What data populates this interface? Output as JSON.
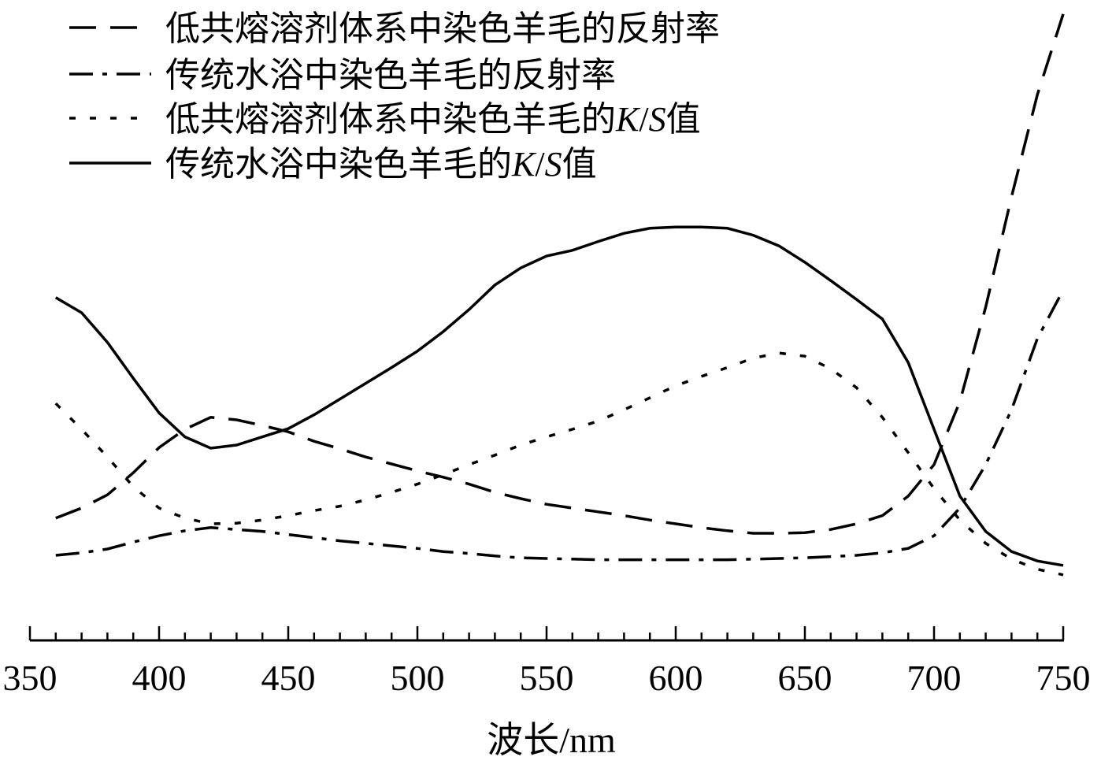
{
  "chart_data": {
    "type": "line",
    "title": "",
    "xlabel": "波长/nm",
    "ylabel": "",
    "xlim": [
      350,
      750
    ],
    "ylim": [
      0,
      100
    ],
    "y_axis_shown": false,
    "grid": false,
    "legend_position": "top-left",
    "xticks": [
      350,
      400,
      450,
      500,
      550,
      600,
      650,
      700,
      750
    ],
    "x": [
      360,
      370,
      380,
      390,
      400,
      410,
      420,
      430,
      440,
      450,
      460,
      470,
      480,
      490,
      500,
      510,
      520,
      530,
      540,
      550,
      560,
      570,
      580,
      590,
      600,
      610,
      620,
      630,
      640,
      650,
      660,
      670,
      680,
      690,
      700,
      710,
      720,
      730,
      740,
      750
    ],
    "series": [
      {
        "name": "低共熔溶剂体系中染色羊毛的反射率",
        "style": "dashed",
        "values": [
          19.4,
          21.0,
          23.1,
          26.6,
          30.6,
          33.5,
          35.4,
          35.0,
          34.1,
          33.1,
          31.6,
          30.4,
          29.1,
          28.0,
          26.9,
          25.9,
          24.8,
          23.5,
          22.5,
          21.6,
          21.0,
          20.4,
          19.8,
          19.1,
          18.5,
          17.9,
          17.4,
          17.0,
          17.0,
          17.1,
          17.6,
          18.5,
          19.8,
          22.9,
          27.9,
          37.9,
          52.9,
          70.4,
          86.6,
          99.4
        ]
      },
      {
        "name": "传统水浴中染色羊毛的反射率",
        "style": "dashdot",
        "values": [
          13.5,
          13.9,
          14.5,
          15.6,
          16.6,
          17.4,
          17.9,
          17.6,
          17.3,
          16.8,
          16.3,
          15.8,
          15.4,
          15.0,
          14.6,
          14.1,
          13.8,
          13.4,
          13.1,
          13.0,
          12.9,
          12.8,
          12.8,
          12.8,
          12.8,
          12.8,
          12.8,
          12.9,
          13.0,
          13.1,
          13.3,
          13.5,
          13.9,
          14.6,
          16.6,
          21.0,
          27.9,
          36.6,
          47.9,
          55.6
        ]
      },
      {
        "name": "低共熔溶剂体系中染色羊毛的K/S值",
        "style": "dotted",
        "values": [
          37.6,
          33.5,
          29.1,
          24.4,
          21.0,
          19.4,
          18.5,
          18.6,
          19.1,
          19.8,
          20.6,
          21.3,
          22.3,
          23.5,
          24.8,
          26.3,
          27.9,
          29.4,
          31.0,
          32.3,
          33.5,
          34.8,
          36.6,
          38.5,
          40.4,
          41.9,
          43.3,
          44.8,
          45.6,
          45.1,
          43.1,
          40.1,
          35.4,
          29.8,
          24.1,
          19.1,
          15.4,
          12.9,
          11.3,
          10.4
        ]
      },
      {
        "name": "传统水浴中染色羊毛的K/S值",
        "style": "solid",
        "values": [
          54.4,
          52.0,
          47.3,
          41.6,
          36.1,
          32.3,
          30.5,
          31.0,
          32.3,
          33.6,
          35.8,
          38.3,
          40.8,
          43.3,
          45.9,
          49.0,
          52.5,
          56.4,
          59.1,
          61.0,
          61.9,
          63.3,
          64.6,
          65.4,
          65.6,
          65.6,
          65.4,
          64.3,
          62.6,
          60.0,
          57.1,
          54.1,
          51.0,
          44.1,
          33.5,
          22.9,
          17.3,
          14.1,
          12.6,
          11.9
        ]
      }
    ],
    "line_color": "#000000"
  }
}
